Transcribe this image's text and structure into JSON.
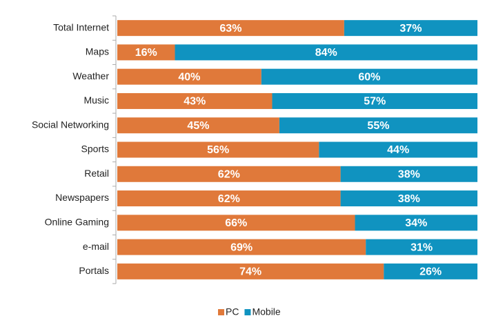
{
  "chart_data": {
    "type": "stacked-bar-horizontal",
    "categories": [
      "Total Internet",
      "Maps",
      "Weather",
      "Music",
      "Social Networking",
      "Sports",
      "Retail",
      "Newspapers",
      "Online Gaming",
      "e-mail",
      "Portals"
    ],
    "xlim": [
      0,
      100
    ],
    "series": [
      {
        "name": "PC",
        "color": "#e0793a",
        "values": [
          63,
          16,
          40,
          43,
          45,
          56,
          62,
          62,
          66,
          69,
          74
        ],
        "value_labels": [
          "63%",
          "16%",
          "40%",
          "43%",
          "45%",
          "56%",
          "62%",
          "62%",
          "66%",
          "69%",
          "74%"
        ]
      },
      {
        "name": "Mobile",
        "color": "#1093c0",
        "values": [
          37,
          84,
          60,
          57,
          55,
          44,
          38,
          38,
          34,
          31,
          26
        ],
        "value_labels": [
          "37%",
          "84%",
          "60%",
          "57%",
          "55%",
          "44%",
          "38%",
          "38%",
          "34%",
          "31%",
          "26%"
        ]
      }
    ],
    "legend": "bottom"
  }
}
